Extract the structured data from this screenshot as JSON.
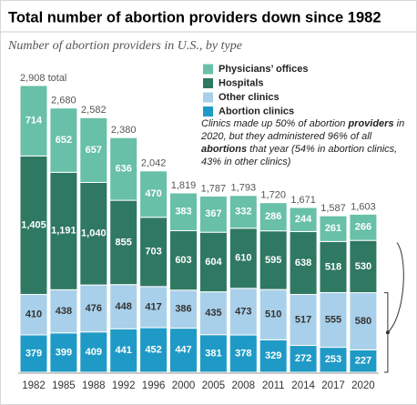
{
  "chart_data": {
    "type": "stacked_bar",
    "title": "Total number of abortion providers down since 1982",
    "subtitle": "Number of abortion providers in U.S., by type",
    "categories": [
      "1982",
      "1985",
      "1988",
      "1992",
      "1996",
      "2000",
      "2005",
      "2008",
      "2011",
      "2014",
      "2017",
      "2020"
    ],
    "series": [
      {
        "name": "Abortion clinics",
        "color": "#1f9ac6",
        "label_color": "#ffffff",
        "values": [
          379,
          399,
          409,
          441,
          452,
          447,
          381,
          378,
          329,
          272,
          253,
          227
        ]
      },
      {
        "name": "Other clinics",
        "color": "#a9d0ea",
        "label_color": "#333333",
        "values": [
          410,
          438,
          476,
          448,
          417,
          386,
          435,
          473,
          510,
          517,
          555,
          580
        ]
      },
      {
        "name": "Hospitals",
        "color": "#2f7862",
        "label_color": "#ffffff",
        "values": [
          1405,
          1191,
          1040,
          855,
          703,
          603,
          604,
          610,
          595,
          638,
          518,
          530
        ],
        "value_labels": [
          "1,405",
          "1,191",
          "1,040",
          "855",
          "703",
          "603",
          "604",
          "610",
          "595",
          "638",
          "518",
          "530"
        ]
      },
      {
        "name": "Physicians’ offices",
        "color": "#68c0a8",
        "label_color": "#ffffff",
        "values": [
          714,
          652,
          657,
          636,
          470,
          383,
          367,
          332,
          286,
          244,
          261,
          266
        ]
      }
    ],
    "totals": [
      2908,
      2680,
      2582,
      2380,
      2042,
      1819,
      1787,
      1793,
      1720,
      1671,
      1587,
      1603
    ],
    "total_labels": [
      "2,908 total",
      "2,680",
      "2,582",
      "2,380",
      "2,042",
      "1,819",
      "1,787",
      "1,793",
      "1,720",
      "1,671",
      "1,587",
      "1,603"
    ],
    "annotation": [
      "Clinics made up 50% of abortion ",
      "providers",
      " in 2020, but they administered 96% of all ",
      "abortions",
      " that year (54% in abortion clinics, 43% in other clinics)"
    ]
  }
}
